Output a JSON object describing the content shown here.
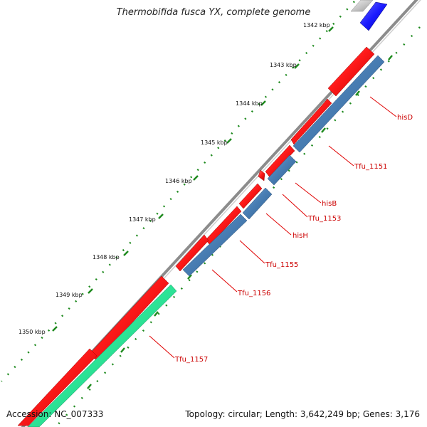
{
  "map": {
    "title": "Thermobifida fusca YX, complete genome",
    "accession": "Accession: NC_007333",
    "summary": "Topology: circular; Length: 3,642,249 bp; Genes: 3,176"
  },
  "scale_labels": [
    "1342 kbp",
    "1343 kbp",
    "1344 kbp",
    "1345 kbp",
    "1346 kbp",
    "1347 kbp",
    "1348 kbp",
    "1349 kbp",
    "1350 kbp"
  ],
  "gene_labels": [
    "hisD",
    "Tfu_1151",
    "hisB",
    "Tfu_1153",
    "hisH",
    "Tfu_1155",
    "Tfu_1156",
    "Tfu_1157"
  ],
  "colors": {
    "backbone": "#8c8c8c",
    "tick": "#1e8a1e",
    "cds_red": "#ff1a1a",
    "gene_blue": "#4a7fb5",
    "gene_green": "#2ee89a",
    "feature_blue": "#1a1aff",
    "feature_grey": "#c8c8c8",
    "label_red": "#cc0000"
  }
}
